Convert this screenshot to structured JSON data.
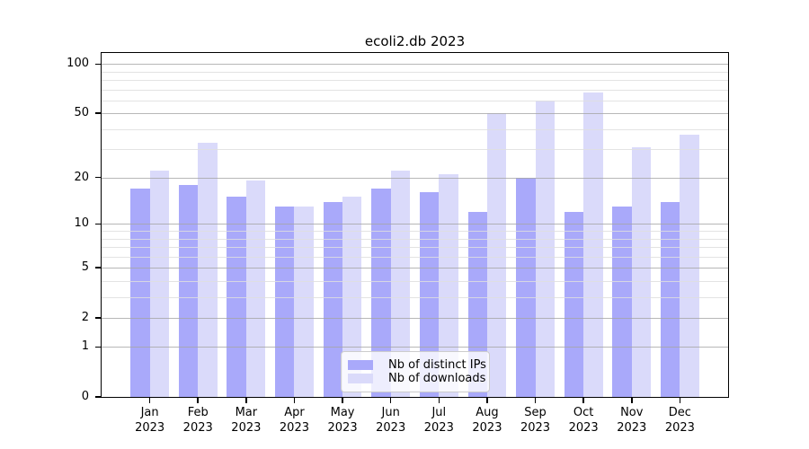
{
  "chart_data": {
    "type": "bar",
    "title": "ecoli2.db 2023",
    "categories": [
      "Jan",
      "Feb",
      "Mar",
      "Apr",
      "May",
      "Jun",
      "Jul",
      "Aug",
      "Sep",
      "Oct",
      "Nov",
      "Dec"
    ],
    "category_year": "2023",
    "series": [
      {
        "name": "Nb of distinct IPs",
        "color": "#a9a9fa",
        "values": [
          17,
          18,
          15,
          13,
          14,
          17,
          16,
          12,
          20,
          12,
          13,
          14
        ]
      },
      {
        "name": "Nb of downloads",
        "color": "#dadafa",
        "values": [
          22,
          33,
          19,
          13,
          15,
          22,
          21,
          50,
          60,
          67,
          31,
          37
        ]
      }
    ],
    "xlabel": "",
    "ylabel": "",
    "y_axis": {
      "scale": "log1p",
      "tick_labels": [
        100,
        50,
        20,
        10,
        5,
        2,
        1,
        0
      ],
      "minor_gridlines": [
        3,
        4,
        6,
        7,
        8,
        9,
        30,
        40,
        60,
        70,
        80,
        90
      ],
      "ylim": [
        0,
        117
      ]
    },
    "grid": true,
    "legend_position": "lower center"
  },
  "colors": {
    "bar_distinct_ips": "#a9a9fa",
    "bar_downloads": "#dadafa",
    "major_grid": "#a5a5a5",
    "minor_grid": "#dedede",
    "axis": "#000000",
    "background": "#ffffff",
    "legend_border": "#cccccc"
  }
}
